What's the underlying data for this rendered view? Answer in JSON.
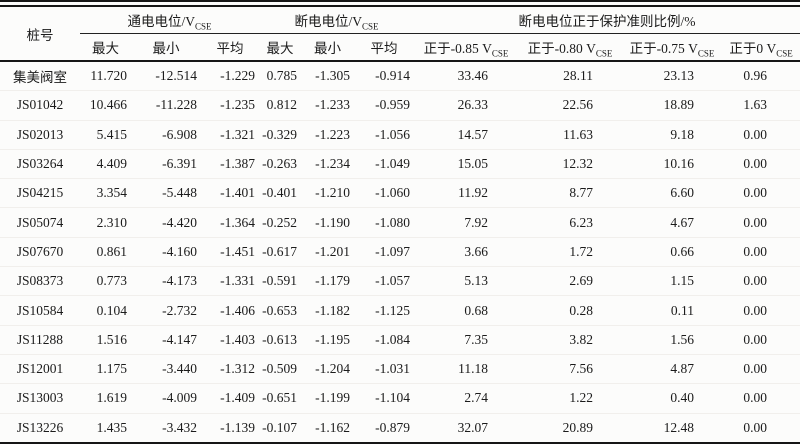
{
  "page": {
    "background": "#fcfcfb",
    "text_color": "#1b1b1b",
    "rule_color": "#161616"
  },
  "table": {
    "pile_header": "桩号",
    "groups": [
      {
        "text": "通电电位/V",
        "sub": "CSE"
      },
      {
        "text": "断电电位/V",
        "sub": "CSE"
      },
      {
        "text": "断电电位正于保护准则比例/%",
        "sub": ""
      }
    ],
    "subheaders": [
      {
        "text": "最大",
        "sub": ""
      },
      {
        "text": "最小",
        "sub": ""
      },
      {
        "text": "平均",
        "sub": ""
      },
      {
        "text": "最大",
        "sub": ""
      },
      {
        "text": "最小",
        "sub": ""
      },
      {
        "text": "平均",
        "sub": ""
      },
      {
        "text": "正于-0.85 V",
        "sub": "CSE"
      },
      {
        "text": "正于-0.80 V",
        "sub": "CSE"
      },
      {
        "text": "正于-0.75 V",
        "sub": "CSE"
      },
      {
        "text": "正于0 V",
        "sub": "CSE"
      }
    ],
    "rows": [
      [
        "集美阀室",
        "11.720",
        "-12.514",
        "-1.229",
        "0.785",
        "-1.305",
        "-0.914",
        "33.46",
        "28.11",
        "23.13",
        "0.96"
      ],
      [
        "JS01042",
        "10.466",
        "-11.228",
        "-1.235",
        "0.812",
        "-1.233",
        "-0.959",
        "26.33",
        "22.56",
        "18.89",
        "1.63"
      ],
      [
        "JS02013",
        "5.415",
        "-6.908",
        "-1.321",
        "-0.329",
        "-1.223",
        "-1.056",
        "14.57",
        "11.63",
        "9.18",
        "0.00"
      ],
      [
        "JS03264",
        "4.409",
        "-6.391",
        "-1.387",
        "-0.263",
        "-1.234",
        "-1.049",
        "15.05",
        "12.32",
        "10.16",
        "0.00"
      ],
      [
        "JS04215",
        "3.354",
        "-5.448",
        "-1.401",
        "-0.401",
        "-1.210",
        "-1.060",
        "11.92",
        "8.77",
        "6.60",
        "0.00"
      ],
      [
        "JS05074",
        "2.310",
        "-4.420",
        "-1.364",
        "-0.252",
        "-1.190",
        "-1.080",
        "7.92",
        "6.23",
        "4.67",
        "0.00"
      ],
      [
        "JS07670",
        "0.861",
        "-4.160",
        "-1.451",
        "-0.617",
        "-1.201",
        "-1.097",
        "3.66",
        "1.72",
        "0.66",
        "0.00"
      ],
      [
        "JS08373",
        "0.773",
        "-4.173",
        "-1.331",
        "-0.591",
        "-1.179",
        "-1.057",
        "5.13",
        "2.69",
        "1.15",
        "0.00"
      ],
      [
        "JS10584",
        "0.104",
        "-2.732",
        "-1.406",
        "-0.653",
        "-1.182",
        "-1.125",
        "0.68",
        "0.28",
        "0.11",
        "0.00"
      ],
      [
        "JS11288",
        "1.516",
        "-4.147",
        "-1.403",
        "-0.613",
        "-1.195",
        "-1.084",
        "7.35",
        "3.82",
        "1.56",
        "0.00"
      ],
      [
        "JS12001",
        "1.175",
        "-3.440",
        "-1.312",
        "-0.509",
        "-1.204",
        "-1.031",
        "11.18",
        "7.56",
        "4.87",
        "0.00"
      ],
      [
        "JS13003",
        "1.619",
        "-4.009",
        "-1.409",
        "-0.651",
        "-1.199",
        "-1.104",
        "2.74",
        "1.22",
        "0.40",
        "0.00"
      ],
      [
        "JS13226",
        "1.435",
        "-3.432",
        "-1.139",
        "-0.107",
        "-1.162",
        "-0.879",
        "32.07",
        "20.89",
        "12.48",
        "0.00"
      ]
    ]
  }
}
